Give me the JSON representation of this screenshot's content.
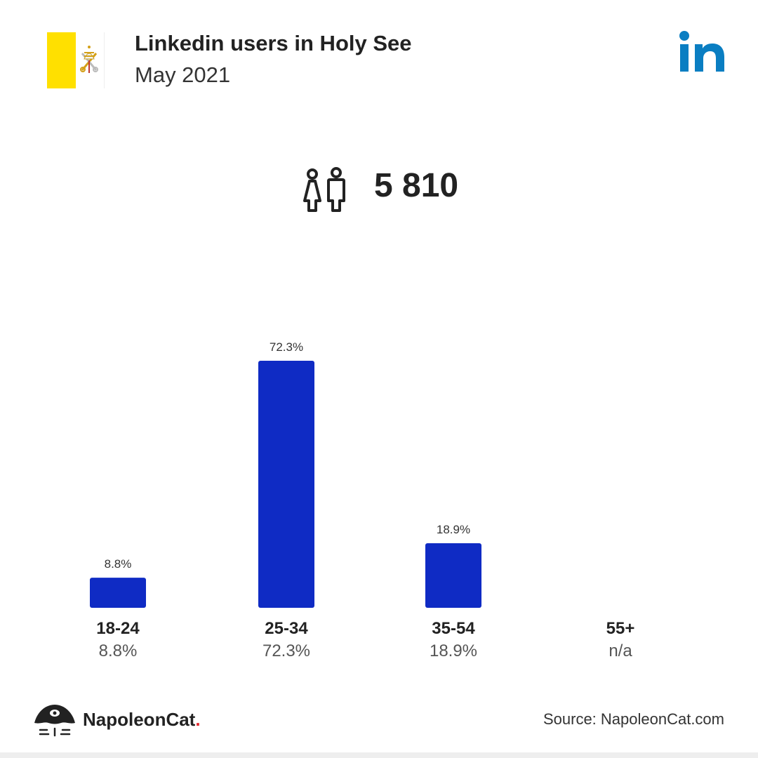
{
  "header": {
    "title": "Linkedin users in Holy See",
    "subtitle": "May 2021"
  },
  "total": {
    "value": "5 810",
    "icon": "users-icon"
  },
  "colors": {
    "bar": "#0f2bc4",
    "linkedin": "#0a7ec2",
    "flag_yellow": "#ffe000"
  },
  "chart_data": {
    "type": "bar",
    "categories": [
      "18-24",
      "25-34",
      "35-54",
      "55+"
    ],
    "values": [
      8.8,
      72.3,
      18.9,
      null
    ],
    "data_labels": [
      "8.8%",
      "72.3%",
      "18.9%",
      ""
    ],
    "category_values": [
      "8.8%",
      "72.3%",
      "18.9%",
      "n/a"
    ],
    "ylim": [
      0,
      72.3
    ],
    "grid": false
  },
  "footer": {
    "brand": "NapoleonCat",
    "brand_dot": ".",
    "source": "Source: NapoleonCat.com"
  }
}
